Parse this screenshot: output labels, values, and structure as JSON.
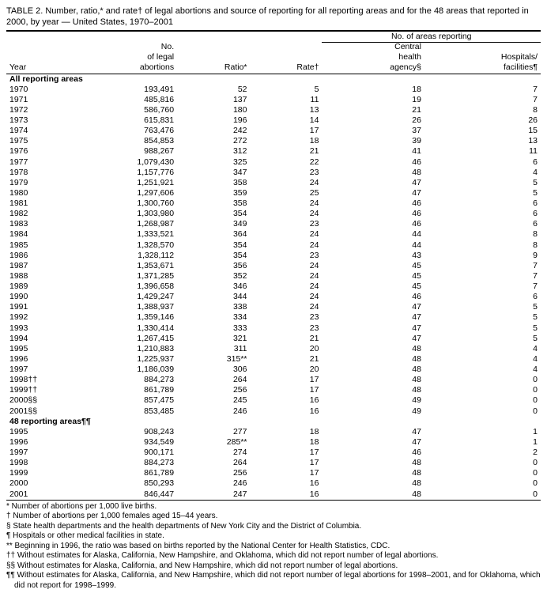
{
  "title": "TABLE 2. Number, ratio,* and rate† of legal abortions and source of reporting for all reporting areas and for the 48 areas that reported in 2000, by year — United States, 1970–2001",
  "headers": {
    "group": "No. of areas reporting",
    "year": "Year",
    "abortions": "No.\nof legal\nabortions",
    "ratio": "Ratio*",
    "rate": "Rate†",
    "agency": "Central\nhealth\nagency§",
    "facilities": "Hospitals/\nfacilities¶"
  },
  "sections": [
    {
      "label": "All reporting areas",
      "rows": [
        [
          "1970",
          "193,491",
          "52",
          "5",
          "18",
          "7"
        ],
        [
          "1971",
          "485,816",
          "137",
          "11",
          "19",
          "7"
        ],
        [
          "1972",
          "586,760",
          "180",
          "13",
          "21",
          "8"
        ],
        [
          "1973",
          "615,831",
          "196",
          "14",
          "26",
          "26"
        ],
        [
          "1974",
          "763,476",
          "242",
          "17",
          "37",
          "15"
        ],
        [
          "1975",
          "854,853",
          "272",
          "18",
          "39",
          "13"
        ],
        [
          "1976",
          "988,267",
          "312",
          "21",
          "41",
          "11"
        ],
        [
          "1977",
          "1,079,430",
          "325",
          "22",
          "46",
          "6"
        ],
        [
          "1978",
          "1,157,776",
          "347",
          "23",
          "48",
          "4"
        ],
        [
          "1979",
          "1,251,921",
          "358",
          "24",
          "47",
          "5"
        ],
        [
          "1980",
          "1,297,606",
          "359",
          "25",
          "47",
          "5"
        ],
        [
          "1981",
          "1,300,760",
          "358",
          "24",
          "46",
          "6"
        ],
        [
          "1982",
          "1,303,980",
          "354",
          "24",
          "46",
          "6"
        ],
        [
          "1983",
          "1,268,987",
          "349",
          "23",
          "46",
          "6"
        ],
        [
          "1984",
          "1,333,521",
          "364",
          "24",
          "44",
          "8"
        ],
        [
          "1985",
          "1,328,570",
          "354",
          "24",
          "44",
          "8"
        ],
        [
          "1986",
          "1,328,112",
          "354",
          "23",
          "43",
          "9"
        ],
        [
          "1987",
          "1,353,671",
          "356",
          "24",
          "45",
          "7"
        ],
        [
          "1988",
          "1,371,285",
          "352",
          "24",
          "45",
          "7"
        ],
        [
          "1989",
          "1,396,658",
          "346",
          "24",
          "45",
          "7"
        ],
        [
          "1990",
          "1,429,247",
          "344",
          "24",
          "46",
          "6"
        ],
        [
          "1991",
          "1,388,937",
          "338",
          "24",
          "47",
          "5"
        ],
        [
          "1992",
          "1,359,146",
          "334",
          "23",
          "47",
          "5"
        ],
        [
          "1993",
          "1,330,414",
          "333",
          "23",
          "47",
          "5"
        ],
        [
          "1994",
          "1,267,415",
          "321",
          "21",
          "47",
          "5"
        ],
        [
          "1995",
          "1,210,883",
          "311",
          "20",
          "48",
          "4"
        ],
        [
          "1996",
          "1,225,937",
          "315**",
          "21",
          "48",
          "4"
        ],
        [
          "1997",
          "1,186,039",
          "306",
          "20",
          "48",
          "4"
        ],
        [
          "1998††",
          "884,273",
          "264",
          "17",
          "48",
          "0"
        ],
        [
          "1999††",
          "861,789",
          "256",
          "17",
          "48",
          "0"
        ],
        [
          "2000§§",
          "857,475",
          "245",
          "16",
          "49",
          "0"
        ],
        [
          "2001§§",
          "853,485",
          "246",
          "16",
          "49",
          "0"
        ]
      ]
    },
    {
      "label": "48 reporting areas¶¶",
      "rows": [
        [
          "1995",
          "908,243",
          "277",
          "18",
          "47",
          "1"
        ],
        [
          "1996",
          "934,549",
          "285**",
          "18",
          "47",
          "1"
        ],
        [
          "1997",
          "900,171",
          "274",
          "17",
          "46",
          "2"
        ],
        [
          "1998",
          "884,273",
          "264",
          "17",
          "48",
          "0"
        ],
        [
          "1999",
          "861,789",
          "256",
          "17",
          "48",
          "0"
        ],
        [
          "2000",
          "850,293",
          "246",
          "16",
          "48",
          "0"
        ],
        [
          "2001",
          "846,447",
          "247",
          "16",
          "48",
          "0"
        ]
      ]
    }
  ],
  "footnotes": [
    "* Number of abortions per 1,000 live births.",
    "† Number of abortions per 1,000 females aged 15–44 years.",
    "§ State health departments and the health departments of New York City and the District of Columbia.",
    "¶ Hospitals or other medical facilities in state.",
    "** Beginning in 1996, the ratio was based on births reported by the National Center for Health Statistics, CDC.",
    "†† Without estimates for Alaska, California, New Hampshire, and Oklahoma, which did not report number of legal abortions.",
    "§§ Without estimates for Alaska, California, and New Hampshire, which did not report number of legal abortions.",
    "¶¶ Without estimates for Alaska, California, and New Hampshire, which did not report number of legal abortions for 1998–2001, and for Oklahoma, which did not report for 1998–1999."
  ]
}
